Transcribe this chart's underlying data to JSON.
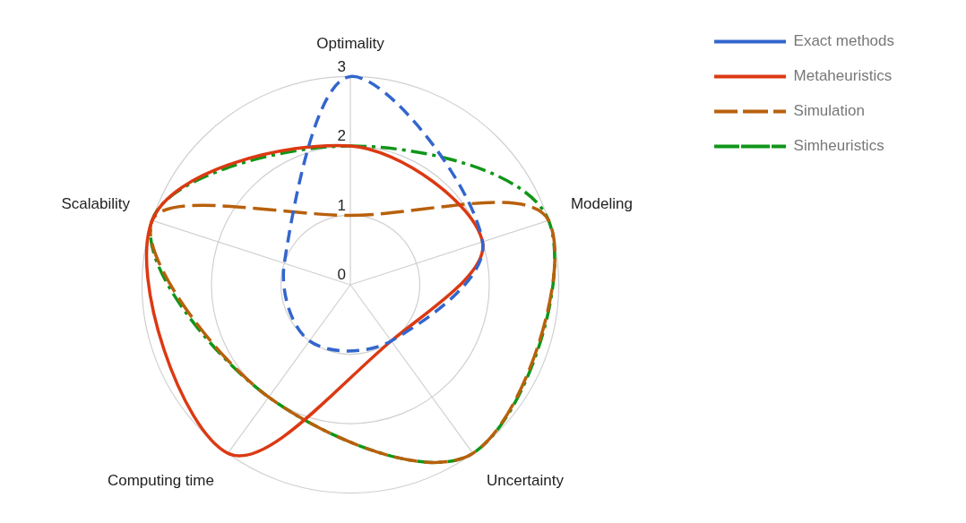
{
  "chart_data": {
    "type": "radar",
    "categories": [
      "Optimality",
      "Modeling",
      "Uncertainty",
      "Computing time",
      "Scalability"
    ],
    "series": [
      {
        "name": "Exact methods",
        "color": "#3366cc",
        "values": [
          3,
          2,
          1,
          1,
          1
        ],
        "line_style": "dashed"
      },
      {
        "name": "Metaheuristics",
        "color": "#dc3912",
        "values": [
          2,
          2,
          1,
          3,
          3
        ],
        "line_style": "solid"
      },
      {
        "name": "Simulation",
        "color": "#b8600c",
        "values": [
          1,
          3,
          3,
          2,
          3
        ],
        "line_style": "dashed"
      },
      {
        "name": "Simheuristics",
        "color": "#109618",
        "values": [
          2,
          3,
          3,
          2,
          3
        ],
        "line_style": "dashed"
      }
    ],
    "ylim": [
      0,
      3
    ],
    "yticks": [
      0,
      1,
      2,
      3
    ],
    "grid": true,
    "legend": "top right",
    "marker": "none"
  }
}
